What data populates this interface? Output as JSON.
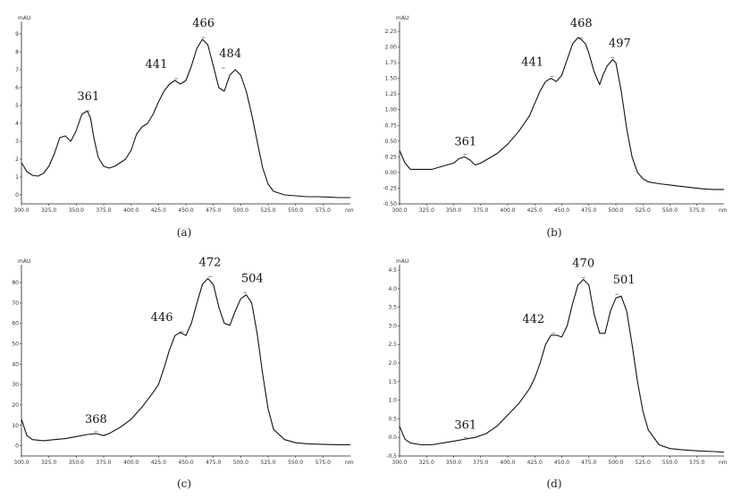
{
  "chart_data": [
    {
      "type": "line",
      "caption": "(a)",
      "y_unit": "mAU",
      "x_unit": "nm",
      "xlim": [
        300,
        600
      ],
      "ylim": [
        -0.5,
        9.5
      ],
      "x_ticks": [
        "300.0",
        "325.0",
        "350.0",
        "375.0",
        "400.0",
        "425.0",
        "450.0",
        "475.0",
        "500.0",
        "525.0",
        "550.0",
        "575.0"
      ],
      "y_ticks": [
        "0",
        "1",
        "2",
        "3",
        "4",
        "5",
        "6",
        "7",
        "8",
        "9"
      ],
      "peak_labels": [
        {
          "text": "361",
          "x": 361,
          "y": 4.6
        },
        {
          "text": "441",
          "x": 441,
          "y": 6.4
        },
        {
          "text": "466",
          "x": 466,
          "y": 8.7
        },
        {
          "text": "484",
          "x": 484,
          "y": 7.0
        }
      ],
      "series": [
        {
          "x": [
            300,
            305,
            310,
            315,
            320,
            325,
            330,
            335,
            340,
            345,
            350,
            355,
            360,
            363,
            366,
            370,
            375,
            380,
            385,
            390,
            395,
            400,
            405,
            410,
            415,
            420,
            425,
            430,
            435,
            440,
            445,
            450,
            455,
            460,
            465,
            470,
            475,
            480,
            485,
            490,
            495,
            500,
            505,
            510,
            515,
            520,
            525,
            530,
            540,
            550,
            560,
            570,
            580,
            590,
            600
          ],
          "y": [
            1.8,
            1.3,
            1.1,
            1.05,
            1.2,
            1.6,
            2.3,
            3.2,
            3.3,
            3.0,
            3.6,
            4.5,
            4.7,
            4.3,
            3.2,
            2.1,
            1.6,
            1.5,
            1.6,
            1.8,
            2.0,
            2.5,
            3.4,
            3.8,
            4.0,
            4.5,
            5.2,
            5.8,
            6.2,
            6.4,
            6.2,
            6.4,
            7.2,
            8.2,
            8.7,
            8.4,
            7.2,
            6.0,
            5.8,
            6.7,
            7.0,
            6.7,
            5.8,
            4.5,
            3.0,
            1.5,
            0.6,
            0.2,
            0.0,
            -0.05,
            -0.1,
            -0.1,
            -0.12,
            -0.15,
            -0.15
          ]
        }
      ]
    },
    {
      "type": "line",
      "caption": "(b)",
      "y_unit": "mAU",
      "x_unit": "nm",
      "xlim": [
        300,
        600
      ],
      "ylim": [
        -0.5,
        2.35
      ],
      "x_ticks": [
        "300.0",
        "325.0",
        "350.0",
        "375.0",
        "400.0",
        "425.0",
        "450.0",
        "475.0",
        "500.0",
        "525.0",
        "550.0",
        "575.0"
      ],
      "y_ticks": [
        "-0.50",
        "-0.25",
        "0.00",
        "0.25",
        "0.50",
        "0.75",
        "1.00",
        "1.25",
        "1.50",
        "1.75",
        "2.00",
        "2.25"
      ],
      "peak_labels": [
        {
          "text": "361",
          "x": 361,
          "y": 0.26
        },
        {
          "text": "441",
          "x": 441,
          "y": 1.5
        },
        {
          "text": "468",
          "x": 468,
          "y": 2.12
        },
        {
          "text": "497",
          "x": 497,
          "y": 1.8
        }
      ],
      "series": [
        {
          "x": [
            300,
            305,
            310,
            320,
            330,
            340,
            350,
            355,
            360,
            365,
            370,
            375,
            380,
            390,
            400,
            410,
            420,
            430,
            435,
            440,
            445,
            450,
            455,
            460,
            465,
            468,
            472,
            475,
            480,
            485,
            488,
            492,
            497,
            500,
            505,
            510,
            515,
            520,
            525,
            530,
            540,
            550,
            560,
            570,
            580,
            590,
            600
          ],
          "y": [
            0.35,
            0.15,
            0.05,
            0.05,
            0.05,
            0.1,
            0.15,
            0.22,
            0.25,
            0.2,
            0.12,
            0.15,
            0.2,
            0.3,
            0.45,
            0.65,
            0.9,
            1.3,
            1.45,
            1.5,
            1.45,
            1.55,
            1.8,
            2.05,
            2.15,
            2.12,
            2.05,
            1.9,
            1.6,
            1.4,
            1.55,
            1.7,
            1.8,
            1.75,
            1.3,
            0.7,
            0.25,
            0.0,
            -0.1,
            -0.15,
            -0.18,
            -0.2,
            -0.22,
            -0.24,
            -0.26,
            -0.27,
            -0.27
          ]
        }
      ]
    },
    {
      "type": "line",
      "caption": "(c)",
      "y_unit": "mAU",
      "x_unit": "nm",
      "xlim": [
        300,
        600
      ],
      "ylim": [
        -5,
        87
      ],
      "x_ticks": [
        "300.0",
        "325.0",
        "350.0",
        "375.0",
        "400.0",
        "425.0",
        "450.0",
        "475.0",
        "500.0",
        "525.0",
        "550.0",
        "575.0"
      ],
      "y_ticks": [
        "0",
        "10",
        "20",
        "30",
        "40",
        "50",
        "60",
        "70",
        "80"
      ],
      "peak_labels": [
        {
          "text": "368",
          "x": 368,
          "y": 6
        },
        {
          "text": "446",
          "x": 446,
          "y": 55
        },
        {
          "text": "472",
          "x": 472,
          "y": 82
        },
        {
          "text": "504",
          "x": 504,
          "y": 74
        }
      ],
      "series": [
        {
          "x": [
            300,
            305,
            310,
            320,
            330,
            340,
            350,
            360,
            368,
            375,
            380,
            390,
            400,
            410,
            420,
            425,
            430,
            435,
            440,
            445,
            450,
            455,
            460,
            465,
            470,
            475,
            480,
            485,
            490,
            495,
            500,
            505,
            510,
            515,
            520,
            525,
            530,
            540,
            550,
            560,
            570,
            580,
            590,
            600
          ],
          "y": [
            13,
            5,
            3,
            2.5,
            3,
            3.5,
            4.5,
            5.5,
            6,
            5,
            6,
            9,
            13,
            19,
            26,
            30,
            38,
            47,
            54,
            55.5,
            54,
            60,
            70,
            79,
            82,
            79,
            68,
            60,
            59,
            66,
            72,
            74,
            70,
            55,
            35,
            18,
            8,
            3,
            1.5,
            1,
            0.8,
            0.6,
            0.5,
            0.5
          ]
        }
      ]
    },
    {
      "type": "line",
      "caption": "(d)",
      "y_unit": "mAU",
      "x_unit": "nm",
      "xlim": [
        300,
        600
      ],
      "ylim": [
        -0.5,
        4.55
      ],
      "x_ticks": [
        "300.0",
        "325.0",
        "350.0",
        "375.0",
        "400.0",
        "425.0",
        "450.0",
        "475.0",
        "500.0",
        "525.0",
        "550.0",
        "575.0"
      ],
      "y_ticks": [
        "-0.5",
        "0.0",
        "0.5",
        "1.0",
        "1.5",
        "2.0",
        "2.5",
        "3.0",
        "3.5",
        "4.0",
        "4.5"
      ],
      "peak_labels": [
        {
          "text": "361",
          "x": 361,
          "y": -0.05
        },
        {
          "text": "442",
          "x": 442,
          "y": 2.75
        },
        {
          "text": "470",
          "x": 470,
          "y": 4.25
        },
        {
          "text": "501",
          "x": 501,
          "y": 3.8
        }
      ],
      "series": [
        {
          "x": [
            300,
            305,
            310,
            320,
            330,
            340,
            350,
            360,
            370,
            380,
            390,
            400,
            410,
            420,
            425,
            430,
            435,
            440,
            445,
            450,
            455,
            460,
            465,
            470,
            475,
            480,
            485,
            490,
            495,
            500,
            505,
            510,
            515,
            520,
            525,
            530,
            540,
            550,
            560,
            570,
            580,
            590,
            600
          ],
          "y": [
            0.3,
            -0.05,
            -0.15,
            -0.2,
            -0.2,
            -0.15,
            -0.1,
            -0.05,
            0.0,
            0.1,
            0.3,
            0.6,
            0.9,
            1.3,
            1.6,
            2.0,
            2.5,
            2.75,
            2.75,
            2.7,
            3.0,
            3.6,
            4.1,
            4.25,
            4.1,
            3.3,
            2.8,
            2.8,
            3.4,
            3.75,
            3.8,
            3.4,
            2.5,
            1.5,
            0.7,
            0.2,
            -0.2,
            -0.3,
            -0.33,
            -0.35,
            -0.37,
            -0.38,
            -0.4
          ]
        }
      ]
    }
  ]
}
